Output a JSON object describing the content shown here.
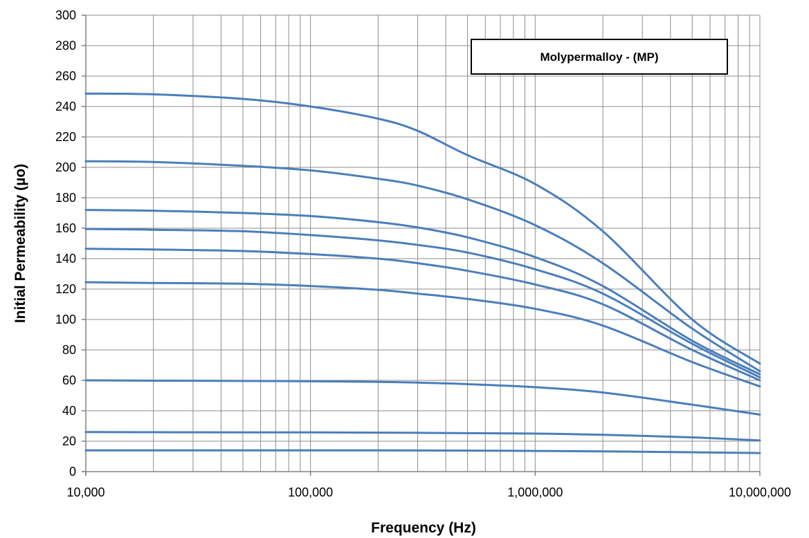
{
  "chart_data": {
    "type": "line",
    "title": "Molypermalloy - (MP)",
    "xlabel": "Frequency (Hz)",
    "ylabel": "Initial Permeability (µo)",
    "x_scale": "log",
    "xlim": [
      10000,
      10000000
    ],
    "ylim": [
      0,
      300
    ],
    "x_ticks": [
      10000,
      100000,
      1000000,
      10000000
    ],
    "x_tick_labels": [
      "10,000",
      "100,000",
      "1,000,000",
      "10,000,000"
    ],
    "y_ticks": [
      0,
      20,
      40,
      60,
      80,
      100,
      120,
      140,
      160,
      180,
      200,
      220,
      240,
      260,
      280,
      300
    ],
    "y_tick_labels": [
      "0",
      "20",
      "40",
      "60",
      "80",
      "100",
      "120",
      "140",
      "160",
      "180",
      "200",
      "220",
      "240",
      "260",
      "280",
      "300"
    ],
    "grid": true,
    "legend_placement": "top-right",
    "line_color": "#4a7ebb",
    "x": [
      10000,
      20000,
      50000,
      100000,
      200000,
      300000,
      500000,
      1000000,
      2000000,
      5000000,
      10000000
    ],
    "series": [
      {
        "values": [
          248.5,
          248,
          245,
          240,
          232,
          224,
          208,
          189,
          158,
          100,
          71
        ]
      },
      {
        "values": [
          204,
          203.5,
          201,
          198,
          192.5,
          188,
          179,
          162,
          137,
          94,
          66
        ]
      },
      {
        "values": [
          172,
          171.5,
          170,
          168,
          164,
          160.5,
          154,
          141,
          122,
          86,
          64
        ]
      },
      {
        "values": [
          159.5,
          159,
          158,
          155.5,
          152,
          149,
          144,
          133,
          117,
          84,
          62
        ]
      },
      {
        "values": [
          146.5,
          146,
          145,
          143,
          140,
          137,
          132,
          123,
          110,
          80,
          60
        ]
      },
      {
        "values": [
          124.5,
          124,
          123.5,
          122,
          119.5,
          117,
          113.5,
          107,
          96,
          72,
          56
        ]
      },
      {
        "values": [
          60,
          59.8,
          59.6,
          59.4,
          59,
          58.5,
          57.5,
          55.5,
          52,
          44,
          37.5
        ]
      },
      {
        "values": [
          26,
          25.9,
          25.8,
          25.8,
          25.6,
          25.5,
          25.3,
          25,
          24.2,
          22.5,
          20.5
        ]
      },
      {
        "values": [
          14,
          14,
          14,
          14,
          14,
          13.9,
          13.8,
          13.6,
          13.3,
          12.7,
          12.2
        ]
      }
    ]
  }
}
